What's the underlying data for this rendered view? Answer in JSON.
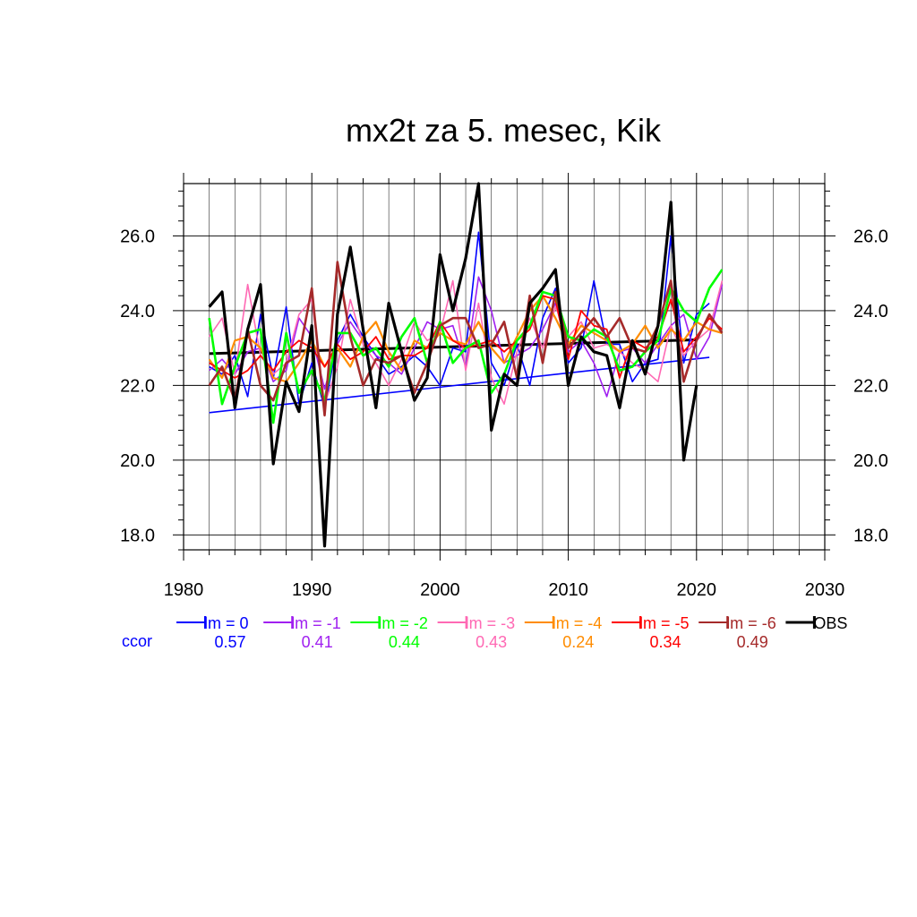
{
  "chart_data": {
    "type": "line",
    "title": "mx2t za 5. mesec, Kik",
    "xlim": [
      1980,
      2030
    ],
    "ylim": [
      17.6,
      27.4
    ],
    "x_ticks": [
      1980,
      1990,
      2000,
      2010,
      2020,
      2030
    ],
    "x_tick_labels": [
      "1980",
      "1990",
      "2000",
      "2010",
      "2020",
      "2030"
    ],
    "y_ticks": [
      18,
      20,
      22,
      24,
      26
    ],
    "y_tick_labels": [
      "18.0",
      "20.0",
      "22.0",
      "24.0",
      "26.0"
    ],
    "grid": true,
    "y_axis_labels_both_sides": true,
    "series": [
      {
        "name": "lm = 0",
        "color": "#0000ff",
        "width": 1.6,
        "x": [
          1982,
          1983,
          1984,
          1985,
          1986,
          1987,
          1988,
          1989,
          1990,
          1991,
          1992,
          1993,
          1994,
          1995,
          1996,
          1997,
          1998,
          1999,
          2000,
          2001,
          2002,
          2003,
          2004,
          2005,
          2006,
          2007,
          2008,
          2009,
          2010,
          2011,
          2012,
          2013,
          2014,
          2015,
          2016,
          2017,
          2018,
          2019,
          2020,
          2021
        ],
        "y": [
          22.5,
          22.3,
          22.8,
          21.7,
          23.9,
          22.2,
          24.1,
          21.5,
          22.6,
          21.4,
          23.2,
          23.9,
          23.3,
          22.8,
          22.3,
          22.5,
          22.8,
          22.5,
          22.0,
          23.0,
          22.9,
          26.1,
          22.6,
          22.0,
          23.1,
          22.0,
          23.8,
          24.6,
          22.6,
          23.0,
          24.8,
          23.1,
          23.1,
          22.1,
          22.6,
          22.7,
          26.0,
          22.6,
          23.9,
          24.2
        ],
        "trend": [
          [
            1982,
            21.27
          ],
          [
            2021,
            22.75
          ]
        ]
      },
      {
        "name": "lm = -1",
        "color": "#a020f0",
        "width": 1.6,
        "x": [
          1982,
          1983,
          1984,
          1985,
          1986,
          1987,
          1988,
          1989,
          1990,
          1991,
          1992,
          1993,
          1994,
          1995,
          1996,
          1997,
          1998,
          1999,
          2000,
          2001,
          2002,
          2003,
          2004,
          2005,
          2006,
          2007,
          2008,
          2009,
          2010,
          2011,
          2012,
          2013,
          2014,
          2015,
          2016,
          2017,
          2018,
          2019,
          2020,
          2021,
          2022
        ],
        "y": [
          22.4,
          22.7,
          22.3,
          22.9,
          23.0,
          22.1,
          22.4,
          23.8,
          23.3,
          21.9,
          23.1,
          23.7,
          23.2,
          22.8,
          22.6,
          22.3,
          23.0,
          23.7,
          23.5,
          23.6,
          22.5,
          24.9,
          24.0,
          22.6,
          22.8,
          23.0,
          23.5,
          24.2,
          22.9,
          23.2,
          22.6,
          21.7,
          22.9,
          23.0,
          22.6,
          23.1,
          23.6,
          23.9,
          22.7,
          23.3,
          24.7
        ],
        "trend": null
      },
      {
        "name": "lm = -2",
        "color": "#00ff00",
        "width": 2.6,
        "x": [
          1982,
          1983,
          1984,
          1985,
          1986,
          1987,
          1988,
          1989,
          1990,
          1991,
          1992,
          1993,
          1994,
          1995,
          1996,
          1997,
          1998,
          1999,
          2000,
          2001,
          2002,
          2003,
          2004,
          2005,
          2006,
          2007,
          2008,
          2009,
          2010,
          2011,
          2012,
          2013,
          2014,
          2015,
          2016,
          2017,
          2018,
          2019,
          2020,
          2021,
          2022
        ],
        "y": [
          23.8,
          21.5,
          22.5,
          23.4,
          23.5,
          21.0,
          23.4,
          21.8,
          22.4,
          21.6,
          23.4,
          23.4,
          22.8,
          23.0,
          22.5,
          23.3,
          23.8,
          22.6,
          23.7,
          22.6,
          23.0,
          23.2,
          21.8,
          22.3,
          23.2,
          23.6,
          24.5,
          24.4,
          23.3,
          23.2,
          23.5,
          23.3,
          22.4,
          22.5,
          22.9,
          23.2,
          24.6,
          24.0,
          23.7,
          24.6,
          25.1
        ],
        "trend": null
      },
      {
        "name": "lm = -3",
        "color": "#ff69b4",
        "width": 1.6,
        "x": [
          1982,
          1983,
          1984,
          1985,
          1986,
          1987,
          1988,
          1989,
          1990,
          1991,
          1992,
          1993,
          1994,
          1995,
          1996,
          1997,
          1998,
          1999,
          2000,
          2001,
          2002,
          2003,
          2004,
          2005,
          2006,
          2007,
          2008,
          2009,
          2010,
          2011,
          2012,
          2013,
          2014,
          2015,
          2016,
          2017,
          2018,
          2019,
          2020,
          2021,
          2022
        ],
        "y": [
          23.3,
          23.8,
          22.3,
          24.7,
          22.8,
          22.3,
          22.6,
          23.9,
          24.3,
          21.5,
          22.5,
          24.3,
          23.1,
          22.6,
          22.0,
          22.7,
          23.7,
          23.2,
          23.4,
          24.8,
          22.4,
          24.2,
          22.2,
          21.5,
          22.9,
          23.8,
          23.0,
          24.1,
          23.3,
          23.7,
          23.0,
          23.1,
          22.9,
          22.6,
          22.4,
          22.1,
          23.6,
          22.8,
          23.2,
          23.5,
          24.8
        ],
        "trend": null
      },
      {
        "name": "lm = -4",
        "color": "#ff8c00",
        "width": 2.2,
        "x": [
          1982,
          1983,
          1984,
          1985,
          1986,
          1987,
          1988,
          1989,
          1990,
          1991,
          1992,
          1993,
          1994,
          1995,
          1996,
          1997,
          1998,
          1999,
          2000,
          2001,
          2002,
          2003,
          2004,
          2005,
          2006,
          2007,
          2008,
          2009,
          2010,
          2011,
          2012,
          2013,
          2014,
          2015,
          2016,
          2017,
          2018,
          2019,
          2020,
          2021,
          2022
        ],
        "y": [
          22.7,
          22.2,
          23.2,
          23.3,
          23.0,
          22.2,
          22.1,
          22.6,
          23.2,
          22.5,
          23.0,
          22.5,
          23.3,
          23.7,
          22.9,
          22.4,
          23.2,
          23.0,
          23.4,
          23.2,
          23.1,
          23.7,
          23.0,
          22.6,
          23.3,
          24.0,
          24.4,
          23.8,
          23.1,
          23.6,
          23.4,
          23.2,
          22.9,
          23.1,
          23.6,
          23.0,
          23.5,
          23.2,
          23.7,
          23.5,
          23.4
        ],
        "trend": null
      },
      {
        "name": "lm = -5",
        "color": "#ff0000",
        "width": 1.8,
        "x": [
          1982,
          1983,
          1984,
          1985,
          1986,
          1987,
          1988,
          1989,
          1990,
          1991,
          1992,
          1993,
          1994,
          1995,
          1996,
          1997,
          1998,
          1999,
          2000,
          2001,
          2002,
          2003,
          2004,
          2005,
          2006,
          2007,
          2008,
          2009,
          2010,
          2011,
          2012,
          2013,
          2014,
          2015,
          2016,
          2017,
          2018,
          2019,
          2020,
          2021,
          2022
        ],
        "y": [
          22.6,
          22.4,
          22.2,
          22.4,
          22.8,
          22.4,
          22.9,
          23.2,
          23.0,
          22.5,
          23.1,
          22.7,
          22.9,
          23.3,
          22.7,
          22.8,
          22.8,
          23.0,
          23.7,
          23.2,
          23.0,
          23.1,
          23.2,
          22.9,
          23.2,
          23.5,
          24.4,
          24.3,
          22.7,
          24.0,
          23.6,
          23.5,
          22.2,
          23.2,
          23.0,
          23.3,
          24.3,
          22.9,
          23.3,
          23.8,
          23.5
        ],
        "trend": null
      },
      {
        "name": "lm = -6",
        "color": "#a52a2a",
        "width": 2.6,
        "x": [
          1982,
          1983,
          1984,
          1985,
          1986,
          1987,
          1988,
          1989,
          1990,
          1991,
          1992,
          1993,
          1994,
          1995,
          1996,
          1997,
          1998,
          1999,
          2000,
          2001,
          2002,
          2003,
          2004,
          2005,
          2006,
          2007,
          2008,
          2009,
          2010,
          2011,
          2012,
          2013,
          2014,
          2015,
          2016,
          2017,
          2018,
          2019,
          2020,
          2021,
          2022
        ],
        "y": [
          22.0,
          22.5,
          21.6,
          23.5,
          22.0,
          21.6,
          22.6,
          22.8,
          24.6,
          21.2,
          25.3,
          23.3,
          22.0,
          22.7,
          22.6,
          22.8,
          21.8,
          22.6,
          23.6,
          23.8,
          23.8,
          23.0,
          23.1,
          23.7,
          22.2,
          24.4,
          22.6,
          24.5,
          23.0,
          23.4,
          23.8,
          23.3,
          23.8,
          23.0,
          22.9,
          23.6,
          24.8,
          22.1,
          23.2,
          23.9,
          23.4
        ],
        "trend": null
      },
      {
        "name": "OBS",
        "color": "#000000",
        "width": 3.2,
        "x": [
          1982,
          1983,
          1984,
          1985,
          1986,
          1987,
          1988,
          1989,
          1990,
          1991,
          1992,
          1993,
          1994,
          1995,
          1996,
          1997,
          1998,
          1999,
          2000,
          2001,
          2002,
          2003,
          2004,
          2005,
          2006,
          2007,
          2008,
          2009,
          2010,
          2011,
          2012,
          2013,
          2014,
          2015,
          2016,
          2017,
          2018,
          2019,
          2020
        ],
        "y": [
          24.1,
          24.5,
          21.4,
          23.5,
          24.7,
          19.9,
          22.1,
          21.3,
          23.6,
          17.7,
          23.9,
          25.7,
          23.5,
          21.4,
          24.2,
          22.9,
          21.6,
          22.2,
          25.5,
          24.0,
          25.4,
          27.4,
          20.8,
          22.3,
          22.0,
          24.2,
          24.6,
          25.1,
          22.0,
          23.3,
          22.9,
          22.8,
          21.4,
          23.2,
          22.3,
          23.6,
          26.9,
          20.0,
          22.0
        ],
        "trend": [
          [
            1982,
            22.85
          ],
          [
            2020,
            23.22
          ]
        ]
      }
    ],
    "legend": {
      "position": "below plot",
      "ccor_label": "ccor",
      "ccor_label_color": "#0000ff",
      "ccor_values": [
        "0.57",
        "0.41",
        "0.44",
        "0.43",
        "0.24",
        "0.34",
        "0.49"
      ]
    }
  }
}
